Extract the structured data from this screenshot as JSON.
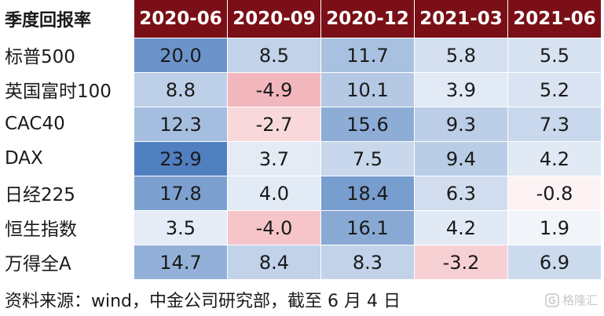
{
  "chart_data": {
    "type": "heatmap",
    "corner_label": "季度回报率",
    "columns": [
      "2020-06",
      "2020-09",
      "2020-12",
      "2021-03",
      "2021-06"
    ],
    "rows": [
      {
        "name": "标普500",
        "values": [
          "20.0",
          "8.5",
          "11.7",
          "5.8",
          "5.5"
        ]
      },
      {
        "name": "英国富时100",
        "values": [
          "8.8",
          "-4.9",
          "10.1",
          "3.9",
          "5.2"
        ]
      },
      {
        "name": "CAC40",
        "values": [
          "12.3",
          "-2.7",
          "15.6",
          "9.3",
          "7.3"
        ]
      },
      {
        "name": "DAX",
        "values": [
          "23.9",
          "3.7",
          "7.5",
          "9.4",
          "4.2"
        ]
      },
      {
        "name": "日经225",
        "values": [
          "17.8",
          "4.0",
          "18.4",
          "6.3",
          "-0.8"
        ]
      },
      {
        "name": "恒生指数",
        "values": [
          "3.5",
          "-4.0",
          "16.1",
          "4.2",
          "1.9"
        ]
      },
      {
        "name": "万得全A",
        "values": [
          "14.7",
          "8.4",
          "8.3",
          "-3.2",
          "6.9"
        ]
      }
    ],
    "colors": {
      "header_bg": "#7a0f17",
      "positive": "#4f7fc0",
      "negative": "#f2b6bc",
      "neutral": "#ffffff"
    }
  },
  "source_text": "资料来源：wind，中金公司研究部，截至 6 月 4 日",
  "watermark_text": "格隆汇"
}
